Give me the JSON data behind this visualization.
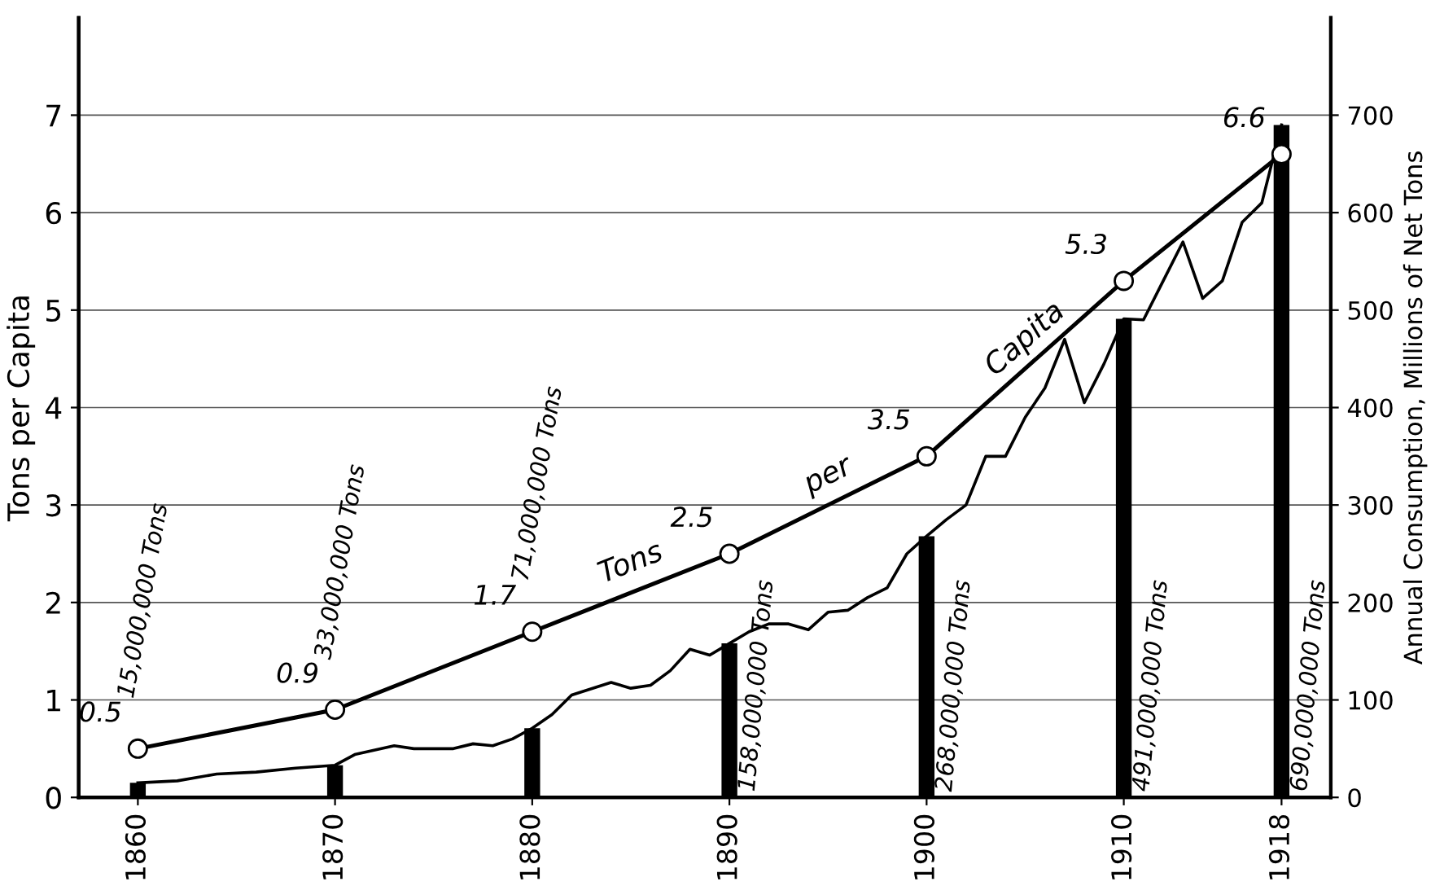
{
  "chart_data": {
    "type": "line",
    "ylabel": "Tons per Capita",
    "y2label": "Annual Consumption, Millions of Net Tons",
    "xlim": [
      1857,
      1920.5
    ],
    "xticks": [
      1860,
      1870,
      1880,
      1890,
      1900,
      1910,
      1918
    ],
    "ylim": [
      0,
      8
    ],
    "yticks": [
      0,
      1,
      2,
      3,
      4,
      5,
      6,
      7
    ],
    "y2lim": [
      0,
      800
    ],
    "y2ticks": [
      0,
      100,
      200,
      300,
      400,
      500,
      600,
      700
    ],
    "grid": "y",
    "series": [
      {
        "type": "bar",
        "axis": "y2",
        "color": "#000000",
        "x": [
          1860,
          1870,
          1880,
          1890,
          1900,
          1910,
          1918
        ],
        "values": [
          15,
          33,
          71,
          158,
          268,
          491,
          690
        ]
      },
      {
        "type": "line",
        "axis": "y2",
        "color": "#000000",
        "marker": "none",
        "x": [
          1860,
          1862,
          1864,
          1866,
          1868,
          1870,
          1871,
          1873,
          1874,
          1876,
          1877,
          1878,
          1879,
          1880,
          1881,
          1882,
          1884,
          1885,
          1886,
          1887,
          1888,
          1889,
          1890,
          1891,
          1892,
          1893,
          1894,
          1895,
          1896,
          1897,
          1898,
          1899,
          1900,
          1901,
          1902,
          1903,
          1904,
          1905,
          1906,
          1907,
          1908,
          1909,
          1910,
          1911,
          1912,
          1913,
          1914,
          1915,
          1916,
          1917,
          1918
        ],
        "values": [
          15,
          17,
          24,
          26,
          30,
          33,
          44,
          53,
          50,
          50,
          55,
          53,
          60,
          71,
          85,
          105,
          118,
          112,
          115,
          130,
          152,
          146,
          158,
          170,
          178,
          178,
          172,
          190,
          192,
          205,
          215,
          250,
          268,
          285,
          300,
          350,
          350,
          390,
          420,
          470,
          405,
          445,
          491,
          490,
          530,
          570,
          512,
          530,
          590,
          610,
          690
        ]
      },
      {
        "color": "#000000",
        "marker": "circle",
        "data_labels": true,
        "x": [
          1860,
          1870,
          1880,
          1890,
          1900,
          1910,
          1918
        ],
        "values": [
          0.5,
          0.9,
          1.7,
          2.5,
          3.5,
          5.3,
          6.6
        ]
      }
    ],
    "annotations": [
      "Tons",
      "per",
      "Capita",
      "15,000,000 Tons",
      "33,000,000 Tons",
      "71,000,000 Tons",
      "158,000,000 Tons",
      "268,000,000 Tons",
      "491,000,000 Tons",
      "690,000,000 Tons"
    ]
  }
}
